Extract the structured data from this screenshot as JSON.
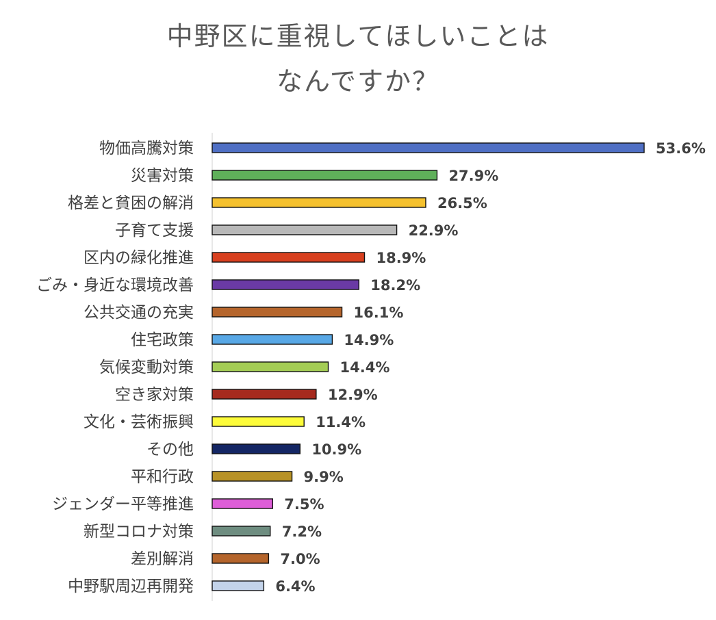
{
  "chart_data": {
    "type": "bar",
    "orientation": "horizontal",
    "title_lines": [
      "中野区に重視してほしいことは",
      "なんですか？"
    ],
    "categories": [
      "物価高騰対策",
      "災害対策",
      "格差と貧困の解消",
      "子育て支援",
      "区内の緑化推進",
      "ごみ・身近な環境改善",
      "公共交通の充実",
      "住宅政策",
      "気候変動対策",
      "空き家対策",
      "文化・芸術振興",
      "その他",
      "平和行政",
      "ジェンダー平等推進",
      "新型コロナ対策",
      "差別解消",
      "中野駅周辺再開発"
    ],
    "values": [
      53.6,
      27.9,
      26.5,
      22.9,
      18.9,
      18.2,
      16.1,
      14.9,
      14.4,
      12.9,
      11.4,
      10.9,
      9.9,
      7.5,
      7.2,
      7.0,
      6.4
    ],
    "value_labels": [
      "53.6%",
      "27.9%",
      "26.5%",
      "22.9%",
      "18.9%",
      "18.2%",
      "16.1%",
      "14.9%",
      "14.4%",
      "12.9%",
      "11.4%",
      "10.9%",
      "9.9%",
      "7.5%",
      "7.2%",
      "7.0%",
      "6.4%"
    ],
    "colors": [
      "#4f6fc4",
      "#5fb05a",
      "#f5c12e",
      "#b8b8b8",
      "#d8401f",
      "#6a3aa5",
      "#b5652c",
      "#58a8e6",
      "#a4cd55",
      "#a62a1e",
      "#fdfc3a",
      "#142664",
      "#b89226",
      "#de5ed8",
      "#6e8d80",
      "#b5652c",
      "#c3d3ea"
    ],
    "xlim": [
      0,
      53.6
    ],
    "grid": false,
    "legend": "none"
  }
}
